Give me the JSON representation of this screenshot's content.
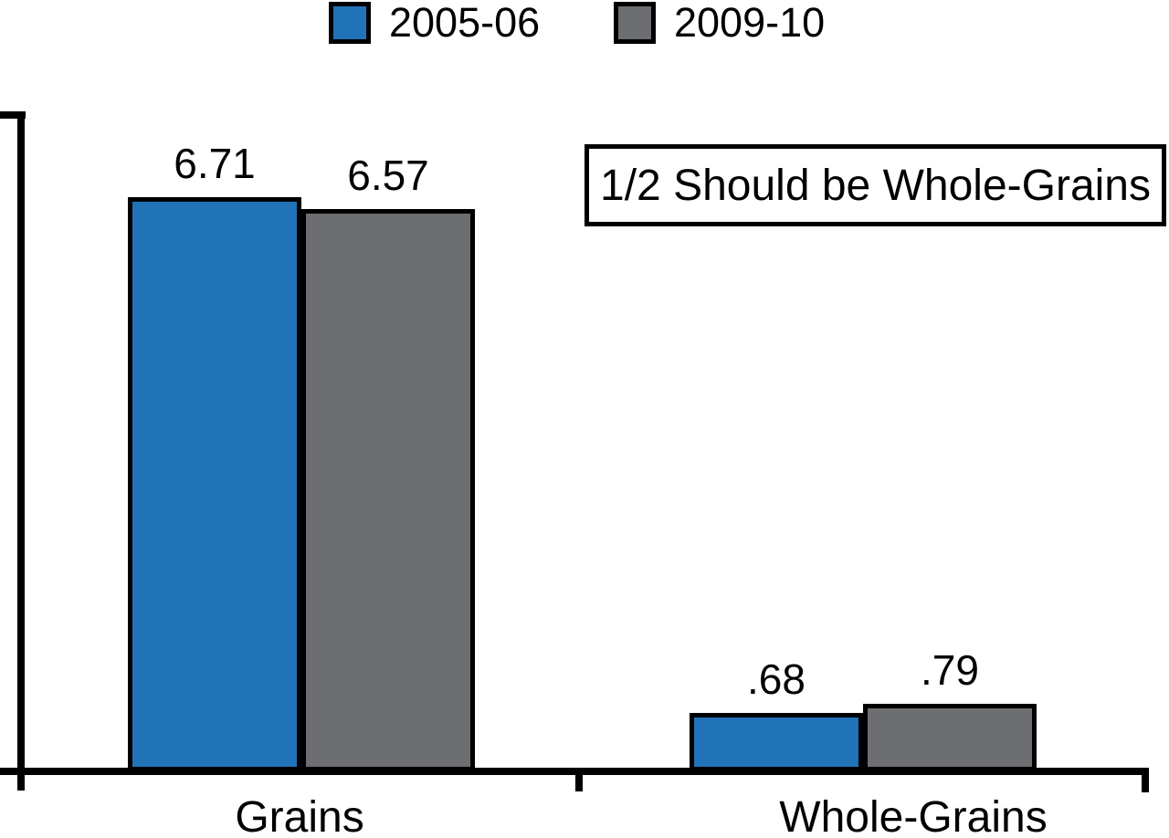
{
  "legend": {
    "items": [
      {
        "label": "2005-06",
        "color": "#2173B8"
      },
      {
        "label": "2009-10",
        "color": "#6C6E71"
      }
    ]
  },
  "annotation_box": {
    "text": "1/2 Should be Whole-Grains"
  },
  "chart_data": {
    "type": "bar",
    "categories": [
      "Grains",
      "Whole-Grains"
    ],
    "series": [
      {
        "name": "2005-06",
        "color": "#2173B8",
        "values": [
          6.71,
          0.68
        ],
        "value_labels": [
          "6.71",
          ".68"
        ]
      },
      {
        "name": "2009-10",
        "color": "#6C6E71",
        "values": [
          6.57,
          0.79
        ],
        "value_labels": [
          "6.57",
          ".79"
        ]
      }
    ],
    "title": "",
    "xlabel": "",
    "ylabel": "",
    "ylim": [
      0,
      7.67
    ],
    "grid": false,
    "legend_position": "top",
    "annotation": "1/2 Should be Whole-Grains",
    "bar_border_color": "#000000",
    "axis_color": "#000000"
  }
}
